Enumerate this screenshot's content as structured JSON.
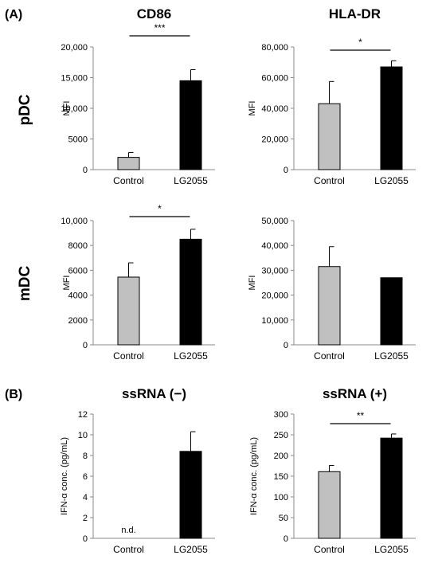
{
  "figure": {
    "panel_labels": [
      "(A)",
      "(B)"
    ],
    "row_labels": [
      "pDC",
      "mDC"
    ]
  },
  "chart_data": [
    {
      "type": "bar",
      "title": "CD86",
      "ylabel": "MFI",
      "categories": [
        "Control",
        "LG2055"
      ],
      "values": [
        2000,
        14500
      ],
      "errors": [
        800,
        1800
      ],
      "colors": [
        "#c0c0c0",
        "#000000"
      ],
      "ylim": [
        0,
        20000
      ],
      "yticks": [
        "0",
        "5000",
        "10,000",
        "15,000",
        "20,000"
      ],
      "significance": "***"
    },
    {
      "type": "bar",
      "title": "HLA-DR",
      "ylabel": "MFI",
      "categories": [
        "Control",
        "LG2055"
      ],
      "values": [
        43000,
        67000
      ],
      "errors": [
        14500,
        4000
      ],
      "colors": [
        "#c0c0c0",
        "#000000"
      ],
      "ylim": [
        0,
        80000
      ],
      "yticks": [
        "0",
        "20,000",
        "40,000",
        "60,000",
        "80,000"
      ],
      "significance": "*"
    },
    {
      "type": "bar",
      "title": "",
      "ylabel": "MFI",
      "categories": [
        "Control",
        "LG2055"
      ],
      "values": [
        5450,
        8500
      ],
      "errors": [
        1150,
        800
      ],
      "colors": [
        "#c0c0c0",
        "#000000"
      ],
      "ylim": [
        0,
        10000
      ],
      "yticks": [
        "0",
        "2000",
        "4000",
        "6000",
        "8000",
        "10,000"
      ],
      "significance": "*"
    },
    {
      "type": "bar",
      "title": "",
      "ylabel": "MFI",
      "categories": [
        "Control",
        "LG2055"
      ],
      "values": [
        31500,
        27000
      ],
      "errors": [
        8000,
        0
      ],
      "colors": [
        "#c0c0c0",
        "#000000"
      ],
      "ylim": [
        0,
        50000
      ],
      "yticks": [
        "0",
        "10,000",
        "20,000",
        "30,000",
        "40,000",
        "50,000"
      ],
      "significance": ""
    },
    {
      "type": "bar",
      "title": "ssRNA (−)",
      "ylabel": "IFN-α conc. (pg/mL)",
      "categories": [
        "Control",
        "LG2055"
      ],
      "values": [
        null,
        8.4
      ],
      "errors": [
        null,
        1.9
      ],
      "colors": [
        "#c0c0c0",
        "#000000"
      ],
      "ylim": [
        0,
        12
      ],
      "yticks": [
        "0",
        "2",
        "4",
        "6",
        "8",
        "10",
        "12"
      ],
      "significance": "",
      "annotations": [
        "n.d.",
        ""
      ]
    },
    {
      "type": "bar",
      "title": "ssRNA (+)",
      "ylabel": "IFN-α conc. (pg/mL)",
      "categories": [
        "Control",
        "LG2055"
      ],
      "values": [
        161,
        242
      ],
      "errors": [
        15,
        10
      ],
      "colors": [
        "#c0c0c0",
        "#000000"
      ],
      "ylim": [
        0,
        300
      ],
      "yticks": [
        "0",
        "50",
        "100",
        "150",
        "200",
        "250",
        "300"
      ],
      "significance": "**"
    }
  ]
}
